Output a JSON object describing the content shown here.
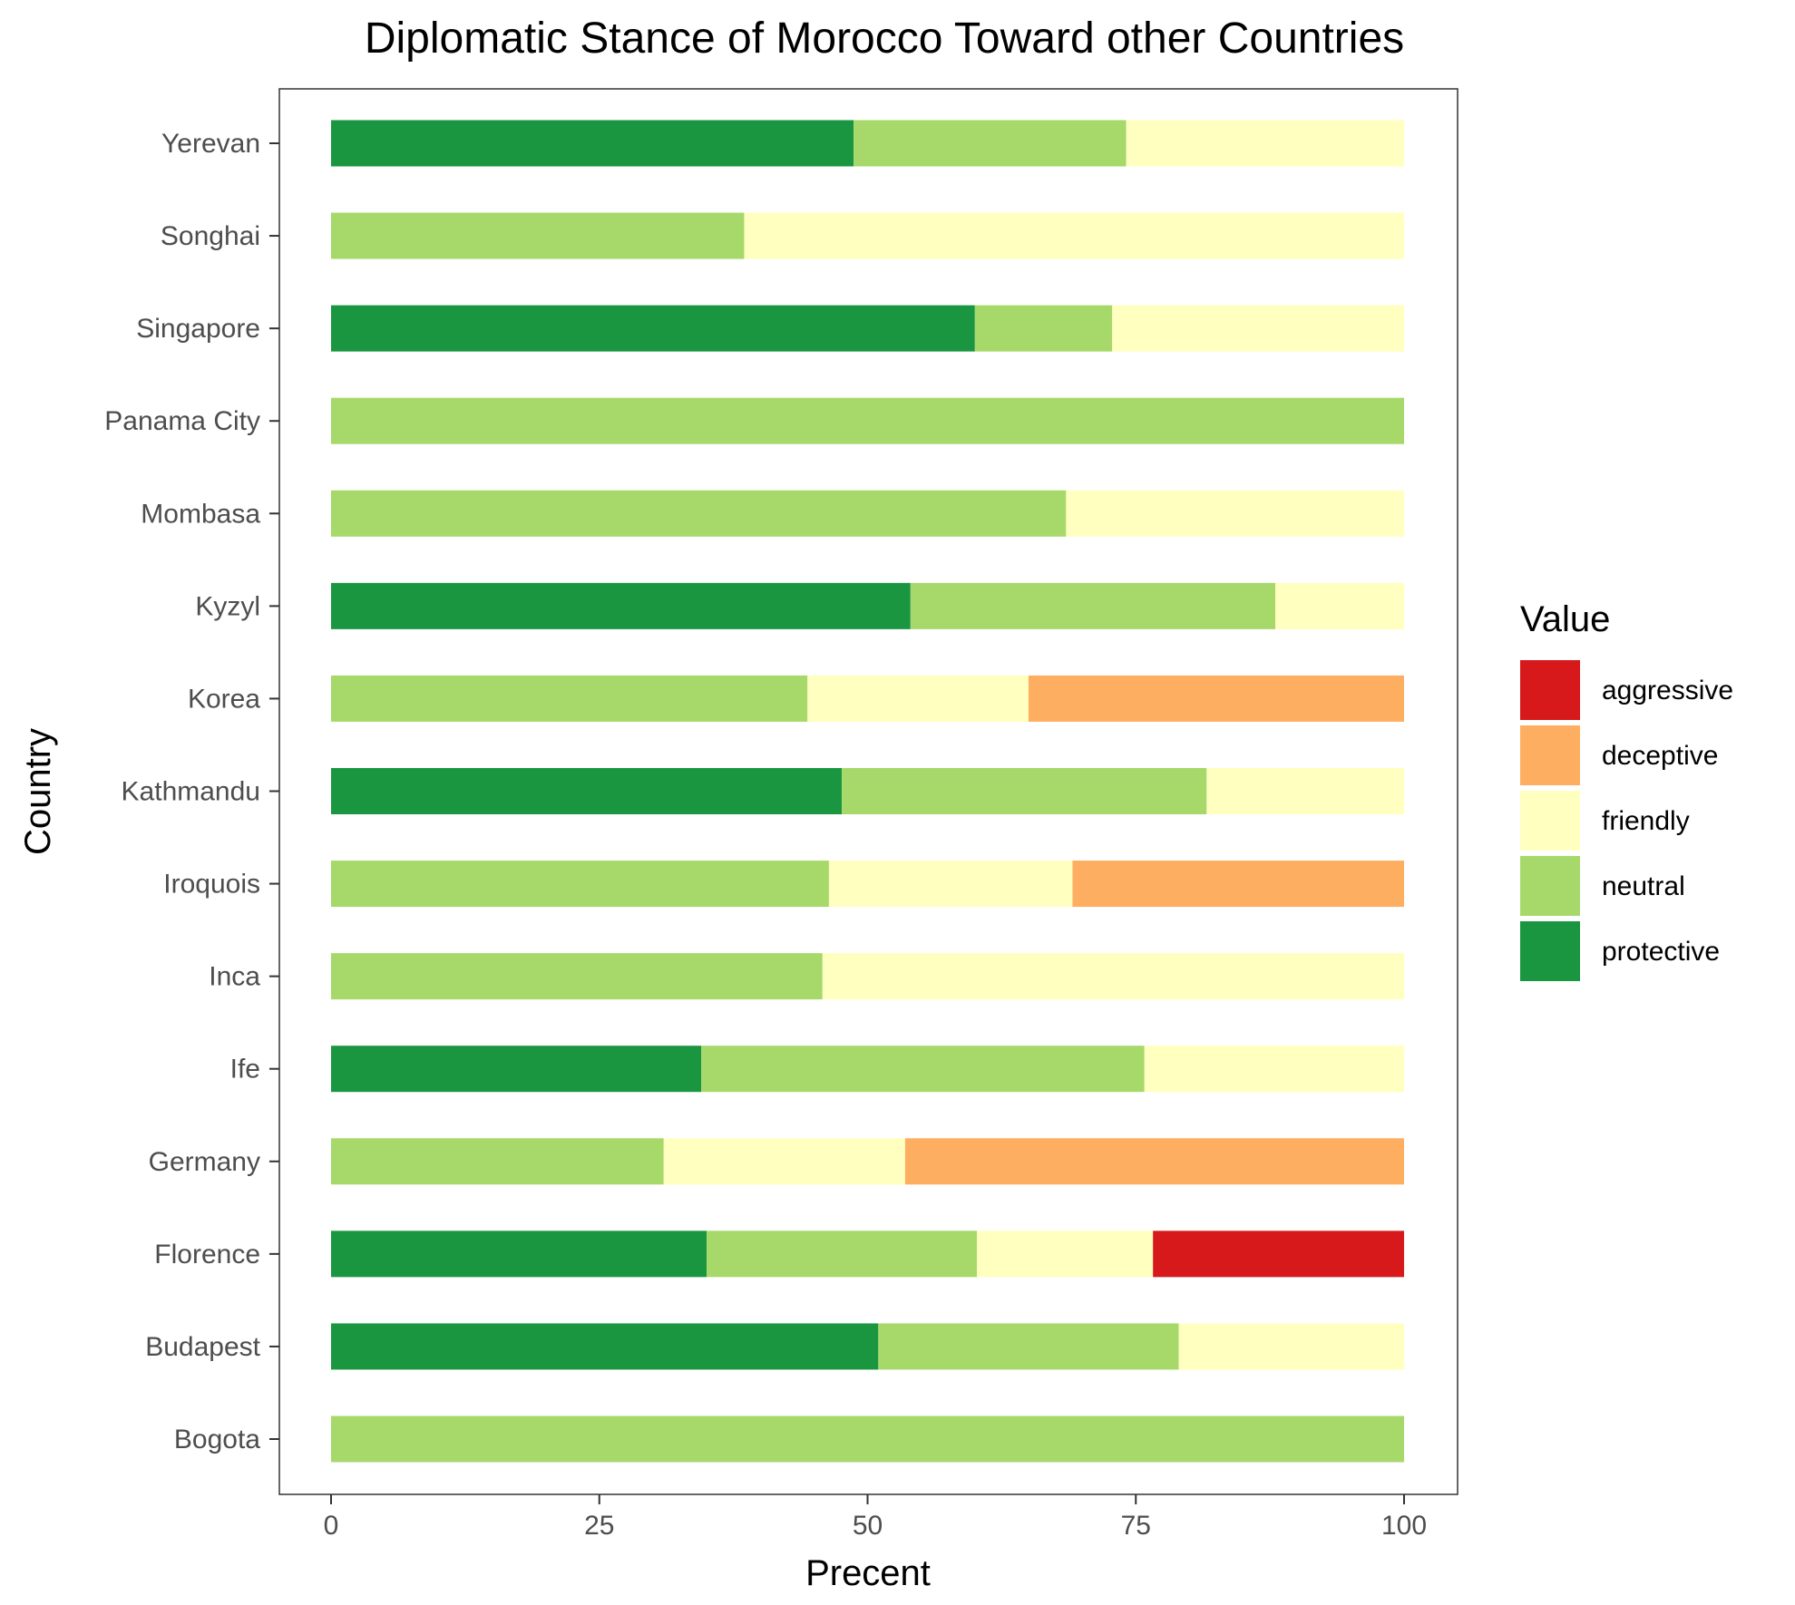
{
  "chart_data": {
    "type": "bar",
    "orientation": "horizontal",
    "stacked": true,
    "title": "Diplomatic Stance of Morocco Toward other Countries",
    "xlabel": "Precent",
    "ylabel": "Country",
    "xlim": [
      0,
      100
    ],
    "xticks": [
      0,
      25,
      50,
      75,
      100
    ],
    "grid": false,
    "legend": {
      "title": "Value",
      "position": "right",
      "entries": [
        "aggressive",
        "deceptive",
        "friendly",
        "neutral",
        "protective"
      ]
    },
    "colors": {
      "protective": "#1a9641",
      "neutral": "#a6d96a",
      "friendly": "#ffffbf",
      "deceptive": "#fdae61",
      "aggressive": "#d7191c"
    },
    "stack_order": [
      "protective",
      "neutral",
      "friendly",
      "deceptive",
      "aggressive"
    ],
    "categories": [
      "Bogota",
      "Budapest",
      "Florence",
      "Germany",
      "Ife",
      "Inca",
      "Iroquois",
      "Kathmandu",
      "Korea",
      "Kyzyl",
      "Mombasa",
      "Panama City",
      "Singapore",
      "Songhai",
      "Yerevan"
    ],
    "series": [
      {
        "name": "protective",
        "values": [
          0,
          51,
          35,
          0,
          34.5,
          0,
          0,
          47.6,
          0,
          54,
          0,
          0,
          60,
          0,
          48.7
        ]
      },
      {
        "name": "neutral",
        "values": [
          100,
          28,
          25.2,
          31,
          41.3,
          45.8,
          46.4,
          34,
          44.4,
          34,
          68.5,
          100,
          12.8,
          38.5,
          25.4
        ]
      },
      {
        "name": "friendly",
        "values": [
          0,
          21,
          16.4,
          22.5,
          24.2,
          54.2,
          22.7,
          18.4,
          20.6,
          12,
          31.5,
          0,
          27.2,
          61.5,
          25.9
        ]
      },
      {
        "name": "deceptive",
        "values": [
          0,
          0,
          0,
          46.5,
          0,
          0,
          30.9,
          0,
          35,
          0,
          0,
          0,
          0,
          0,
          0
        ]
      },
      {
        "name": "aggressive",
        "values": [
          0,
          0,
          23.4,
          0,
          0,
          0,
          0,
          0,
          0,
          0,
          0,
          0,
          0,
          0,
          0
        ]
      }
    ]
  }
}
